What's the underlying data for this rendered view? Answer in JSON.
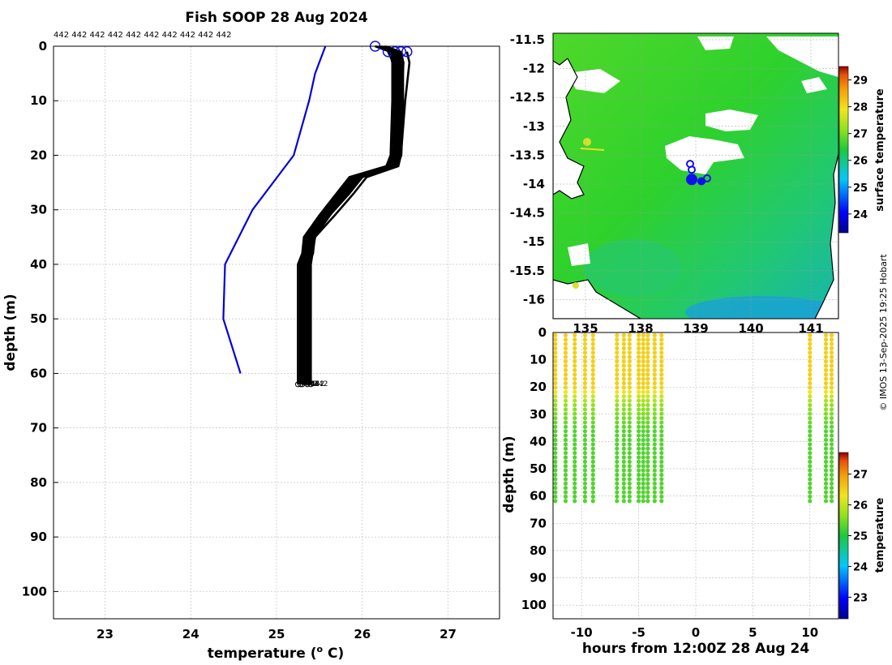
{
  "chart_data": [
    {
      "type": "line",
      "title": "Fish SOOP 28 Aug 2024",
      "xlabel": "temperature (",
      "xlabel_sup": "o",
      "xlabel_unit": " C)",
      "ylabel": "depth (m)",
      "xlim": [
        22.4,
        27.6
      ],
      "ylim": [
        105,
        0
      ],
      "xticks": [
        23,
        24,
        25,
        26,
        27
      ],
      "yticks": [
        0,
        10,
        20,
        30,
        40,
        50,
        60,
        70,
        80,
        90,
        100
      ],
      "top_annotation": "442 442 442 442 442 442 442 442 442 442",
      "end_label": "442",
      "series": [
        {
          "name": "climatology",
          "color": "#0000dd",
          "points": [
            [
              25.57,
              0
            ],
            [
              25.45,
              5
            ],
            [
              25.38,
              10
            ],
            [
              25.2,
              20
            ],
            [
              24.72,
              30
            ],
            [
              24.4,
              40
            ],
            [
              24.38,
              50
            ],
            [
              24.58,
              60
            ]
          ]
        },
        {
          "name": "profile-1",
          "color": "#000000",
          "points": [
            [
              26.15,
              0
            ],
            [
              26.32,
              1
            ],
            [
              26.35,
              3
            ],
            [
              26.35,
              10
            ],
            [
              26.33,
              20
            ],
            [
              26.28,
              22
            ],
            [
              25.85,
              24
            ],
            [
              25.7,
              27
            ],
            [
              25.5,
              31
            ],
            [
              25.32,
              35
            ],
            [
              25.3,
              38
            ],
            [
              25.25,
              40
            ],
            [
              25.25,
              50
            ],
            [
              25.25,
              62
            ]
          ]
        },
        {
          "name": "profile-2",
          "color": "#000000",
          "points": [
            [
              26.38,
              1
            ],
            [
              26.42,
              3
            ],
            [
              26.42,
              10
            ],
            [
              26.38,
              20
            ],
            [
              26.35,
              22
            ],
            [
              25.92,
              24
            ],
            [
              25.78,
              27
            ],
            [
              25.56,
              31
            ],
            [
              25.37,
              35
            ],
            [
              25.34,
              38
            ],
            [
              25.3,
              40
            ],
            [
              25.3,
              50
            ],
            [
              25.3,
              62
            ]
          ]
        },
        {
          "name": "profile-3",
          "color": "#000000",
          "points": [
            [
              26.45,
              1
            ],
            [
              26.48,
              3
            ],
            [
              26.46,
              10
            ],
            [
              26.42,
              20
            ],
            [
              26.4,
              22
            ],
            [
              26.0,
              24
            ],
            [
              25.85,
              27
            ],
            [
              25.62,
              31
            ],
            [
              25.42,
              35
            ],
            [
              25.38,
              38
            ],
            [
              25.36,
              40
            ],
            [
              25.36,
              50
            ],
            [
              25.36,
              62
            ]
          ]
        },
        {
          "name": "profile-4",
          "color": "#000000",
          "points": [
            [
              26.52,
              1
            ],
            [
              26.55,
              3
            ],
            [
              26.5,
              10
            ],
            [
              26.45,
              20
            ],
            [
              26.42,
              22
            ],
            [
              26.05,
              24
            ],
            [
              25.9,
              27
            ],
            [
              25.68,
              31
            ],
            [
              25.45,
              35
            ],
            [
              25.42,
              38
            ],
            [
              25.4,
              40
            ],
            [
              25.4,
              50
            ],
            [
              25.4,
              62
            ]
          ]
        },
        {
          "name": "profile-5",
          "color": "#000000",
          "points": [
            [
              26.3,
              1
            ],
            [
              26.36,
              3
            ],
            [
              26.38,
              10
            ],
            [
              26.36,
              20
            ],
            [
              26.3,
              22
            ],
            [
              25.88,
              24
            ],
            [
              25.72,
              27
            ],
            [
              25.52,
              31
            ],
            [
              25.34,
              35
            ],
            [
              25.31,
              38
            ],
            [
              25.28,
              40
            ],
            [
              25.28,
              50
            ],
            [
              25.28,
              62
            ]
          ]
        }
      ]
    },
    {
      "type": "heatmap",
      "xticks": [
        "135",
        "138",
        "139",
        "140",
        "141"
      ],
      "yticks": [
        "-11.5",
        "-12",
        "-12.5",
        "-13",
        "-13.5",
        "-14",
        "-14.5",
        "-15",
        "-15.5",
        "-16"
      ],
      "colorbar_label": "surface temperature",
      "colorbar_ticks": [
        24,
        25,
        26,
        27,
        28,
        29
      ],
      "colorbar_range": [
        23.3,
        29.5
      ],
      "track_lat": [
        -13.65,
        -13.75,
        -13.92,
        -13.95,
        -13.9
      ]
    },
    {
      "type": "scatter",
      "xlabel": "hours from 12:00Z 28 Aug 24",
      "ylabel": "depth (m)",
      "xlim": [
        -12.5,
        12.5
      ],
      "ylim": [
        105,
        0
      ],
      "xticks": [
        -10,
        -5,
        0,
        5,
        10
      ],
      "yticks": [
        0,
        10,
        20,
        30,
        40,
        50,
        60,
        70,
        80,
        90,
        100
      ],
      "colorbar_label": "temperature",
      "colorbar_ticks": [
        23,
        24,
        25,
        26,
        27
      ],
      "colorbar_range": [
        22.3,
        27.7
      ],
      "cast_times": [
        -12.3,
        -11.4,
        -10.6,
        -9.7,
        -9.0,
        -6.9,
        -6.3,
        -5.8,
        -5.0,
        -4.6,
        -4.2,
        -3.6,
        -3.0,
        10.0,
        11.4,
        11.9
      ]
    }
  ],
  "credit": "© IMOS 13-Sep-2025 19:25 Hobart",
  "colors": {
    "climatology": "#0000dd",
    "profile": "#000000",
    "grid": "#b8b8b8"
  }
}
